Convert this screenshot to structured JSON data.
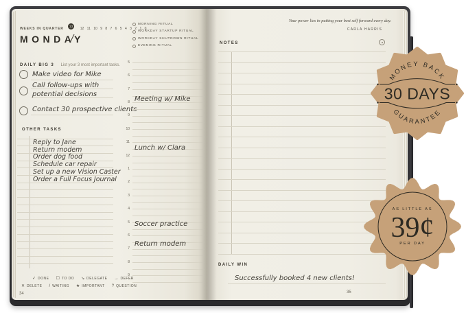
{
  "theme": {
    "background": "#ffffff",
    "cover_color": "#333338",
    "page_color": "#f0eee5",
    "ink_color": "#2f2c26",
    "handwriting_color": "#403d36",
    "rule_color": "#d8d4c6",
    "badge_color": "#c6a179",
    "badge_text_color": "#2d2a23"
  },
  "left_page": {
    "weeks_in_quarter": {
      "label": "WEEKS IN QUARTER",
      "current": "13",
      "numbers": [
        "12",
        "11",
        "10",
        "9",
        "8",
        "7",
        "6",
        "5",
        "4",
        "3",
        "2",
        "1",
        "0"
      ]
    },
    "day_title": "MONDAY",
    "date_placeholder": "/",
    "daily_big_3": {
      "label": "DAILY BIG 3",
      "hint": "List your 3 most important tasks.",
      "tasks": [
        {
          "lines": [
            "Make video for Mike"
          ]
        },
        {
          "lines": [
            "Call follow-ups with",
            "potential decisions"
          ]
        },
        {
          "lines": [
            "Contact 30 prospective clients"
          ]
        }
      ]
    },
    "other_tasks": {
      "label": "OTHER TASKS",
      "items": [
        "Reply to Jane",
        "Return modem",
        "Order dog food",
        "Schedule car repair",
        "Set up a new Vision Caster",
        "Order a Full Focus Journal"
      ]
    },
    "rituals": [
      "MORNING RITUAL",
      "WORKDAY STARTUP RITUAL",
      "WORKDAY SHUTDOWN RITUAL",
      "EVENING RITUAL"
    ],
    "schedule": {
      "hours": [
        "5",
        "6",
        "7",
        "8",
        "9",
        "10",
        "11",
        "12",
        "1",
        "2",
        "3",
        "4",
        "5",
        "6",
        "7",
        "8",
        "9"
      ],
      "entries": [
        {
          "text": "Meeting w/ Mike",
          "row": 3.05
        },
        {
          "text": "Lunch w/ Clara",
          "row": 6.7
        },
        {
          "text": "Soccer practice",
          "row": 12.42
        },
        {
          "text": "Return modem",
          "row": 13.92
        }
      ]
    },
    "legend": {
      "row1": [
        {
          "symbol": "✓",
          "label": "DONE"
        },
        {
          "symbol": "☐",
          "label": "TO DO"
        },
        {
          "symbol": "↘",
          "label": "DELEGATE"
        },
        {
          "symbol": "→",
          "label": "DEFER"
        }
      ],
      "row2": [
        {
          "symbol": "✕",
          "label": "DELETE"
        },
        {
          "symbol": "/",
          "label": "WAITING"
        },
        {
          "symbol": "★",
          "label": "IMPORTANT"
        },
        {
          "symbol": "?",
          "label": "QUESTION"
        }
      ]
    },
    "page_number": "34"
  },
  "right_page": {
    "quote": "Your power lies in putting your best self forward every day.",
    "quote_author": "CARLA HARRIS",
    "notes_label": "NOTES",
    "daily_win": {
      "label": "DAILY WIN",
      "text": "Successfully booked 4 new clients!"
    },
    "page_number": "35"
  },
  "badges": {
    "money_back": {
      "top": "MONEY BACK",
      "center": "30 DAYS",
      "bottom": "GUARANTEE"
    },
    "price": {
      "top": "AS LITTLE AS",
      "center": "39¢",
      "bottom": "PER DAY"
    }
  }
}
